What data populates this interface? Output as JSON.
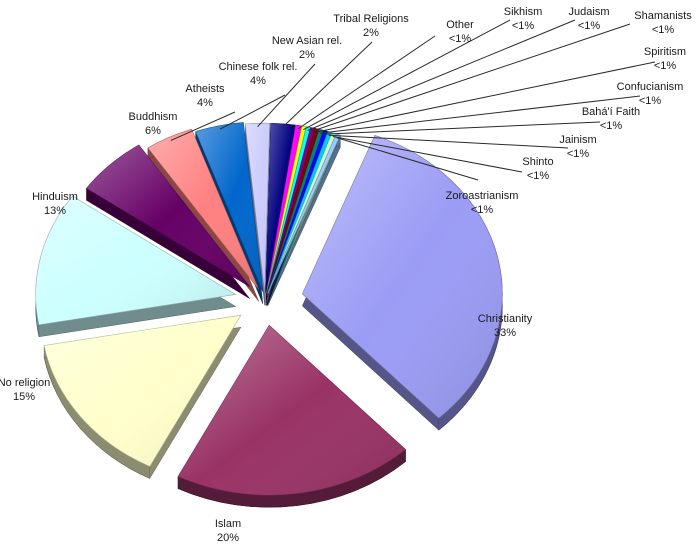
{
  "chart_data": {
    "type": "pie",
    "title": "",
    "exploded": true,
    "style": "3d",
    "slices": [
      {
        "label": "Christianity",
        "value_text": "33%",
        "value": 33,
        "color": "#9b9cf5"
      },
      {
        "label": "Islam",
        "value_text": "20%",
        "value": 20,
        "color": "#993366"
      },
      {
        "label": "No religion",
        "value_text": "15%",
        "value": 15,
        "color": "#ffffcc"
      },
      {
        "label": "Hinduism",
        "value_text": "13%",
        "value": 13,
        "color": "#ccffff"
      },
      {
        "label": "Buddhism",
        "value_text": "6%",
        "value": 6,
        "color": "#660066"
      },
      {
        "label": "Atheists",
        "value_text": "4%",
        "value": 4,
        "color": "#ff8080"
      },
      {
        "label": "Chinese folk rel.",
        "value_text": "4%",
        "value": 4,
        "color": "#0066cc"
      },
      {
        "label": "New Asian rel.",
        "value_text": "2%",
        "value": 2,
        "color": "#ccccff"
      },
      {
        "label": "Tribal Religions",
        "value_text": "2%",
        "value": 2,
        "color": "#000080"
      },
      {
        "label": "Other",
        "value_text": "<1%",
        "value": 0.5,
        "color": "#ff00ff"
      },
      {
        "label": "Sikhism",
        "value_text": "<1%",
        "value": 0.3,
        "color": "#ffff00"
      },
      {
        "label": "Judaism",
        "value_text": "<1%",
        "value": 0.3,
        "color": "#00ffff"
      },
      {
        "label": "Shamanists",
        "value_text": "<1%",
        "value": 0.2,
        "color": "#800080"
      },
      {
        "label": "Spiritism",
        "value_text": "<1%",
        "value": 0.2,
        "color": "#800000"
      },
      {
        "label": "Confucianism",
        "value_text": "<1%",
        "value": 0.1,
        "color": "#008080"
      },
      {
        "label": "Bahá'í Faith",
        "value_text": "<1%",
        "value": 0.1,
        "color": "#0000ff"
      },
      {
        "label": "Jainism",
        "value_text": "<1%",
        "value": 0.1,
        "color": "#00ccff"
      },
      {
        "label": "Shinto",
        "value_text": "<1%",
        "value": 0.1,
        "color": "#ccffcc"
      },
      {
        "label": "Zoroastrianism",
        "value_text": "<1%",
        "value": 0.1,
        "color": "#99ccff"
      }
    ]
  }
}
